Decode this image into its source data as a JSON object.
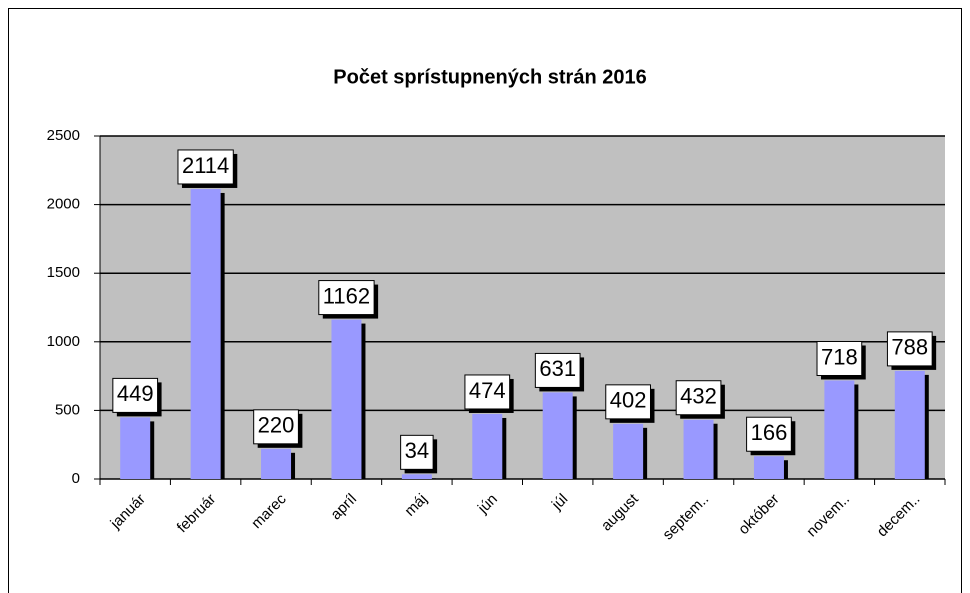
{
  "chart_data": {
    "type": "bar",
    "title": "Počet sprístupnených strán 2016",
    "categories": [
      "január",
      "február",
      "marec",
      "apríl",
      "máj",
      "jún",
      "júl",
      "august",
      "septem..",
      "október",
      "novem..",
      "decem.."
    ],
    "values": [
      449,
      2114,
      220,
      1162,
      34,
      474,
      631,
      402,
      432,
      166,
      718,
      788
    ],
    "color": "#9999ff",
    "plot_background": "#c0c0c0",
    "ylim": [
      0,
      2500
    ],
    "yticks": [
      0,
      500,
      1000,
      1500,
      2000,
      2500
    ],
    "grid": true
  }
}
